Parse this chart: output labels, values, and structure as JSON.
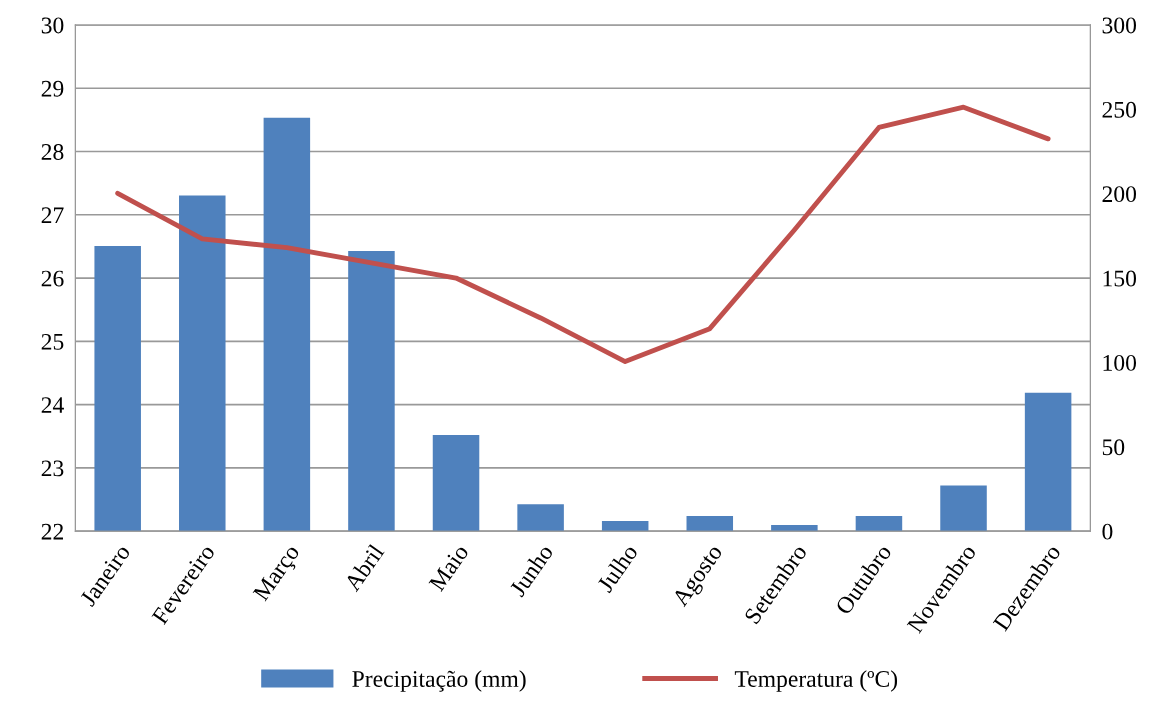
{
  "chart_data": {
    "type": "bar",
    "categories": [
      "Janeiro",
      "Fevereiro",
      "Março",
      "Abril",
      "Maio",
      "Junho",
      "Julho",
      "Agosto",
      "Setembro",
      "Outubro",
      "Novembro",
      "Dezembro"
    ],
    "series": [
      {
        "name": "Precipitação (mm)",
        "axis": "y2",
        "color": "#4f81bd",
        "values": [
          169,
          199,
          245,
          166,
          57,
          16,
          6,
          9,
          3.6,
          9,
          27,
          82
        ]
      },
      {
        "name": "Temperatura (ºC)",
        "type": "line",
        "color": "#c0504d",
        "marker": "none",
        "line_style": "solid",
        "values": [
          27.34,
          26.62,
          26.48,
          26.24,
          26.0,
          25.37,
          24.68,
          25.2,
          26.76,
          28.38,
          28.7,
          28.2
        ]
      }
    ],
    "ylim": [
      22,
      30
    ],
    "yticks": [
      22,
      23,
      24,
      25,
      26,
      27,
      28,
      29,
      30
    ],
    "y2lim": [
      0,
      300
    ],
    "y2ticks": [
      0,
      50,
      100,
      150,
      200,
      250,
      300
    ],
    "grid": "y",
    "legend": "bottom"
  }
}
